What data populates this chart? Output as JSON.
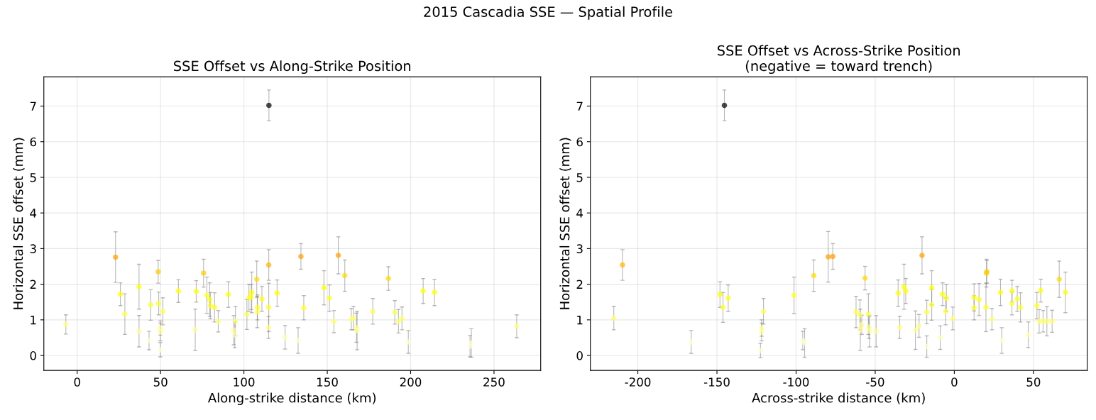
{
  "chart_data": [
    {
      "type": "scatter",
      "title": "SSE Offset vs Along-Strike Position",
      "xlabel": "Along-strike distance (km)",
      "ylabel": "Horizontal SSE offset (mm)",
      "annotations": [
        "2015 Cascadia SSE — Spatial Profile"
      ],
      "xlim": [
        -20,
        278
      ],
      "ylim": [
        -0.42,
        7.82
      ],
      "xticks": [
        0,
        50,
        100,
        150,
        200,
        250
      ],
      "yticks": [
        0,
        1,
        2,
        3,
        4,
        5,
        6,
        7
      ],
      "grid": true,
      "marker": "circle",
      "series": [
        {
          "x": [
            -6.8,
            23.0,
            25.9,
            28.6,
            37.1,
            37.1,
            43.1,
            44.1,
            48.6,
            48.9,
            49.9,
            49.9,
            49.9,
            51.4,
            60.7,
            70.8,
            71.4,
            75.8,
            77.8,
            79.5,
            79.9,
            82.4,
            84.6,
            90.6,
            93.9,
            94.5,
            94.9,
            101.8,
            103.0,
            104.4,
            104.7,
            107.7,
            108.0,
            108.1,
            110.8,
            114.9,
            114.9,
            114.8,
            119.9,
            124.7,
            132.5,
            134.2,
            135.9,
            148.0,
            151.3,
            154.0,
            156.6,
            160.5,
            164.4,
            165.7,
            167.5,
            167.9,
            177.3,
            186.7,
            190.5,
            192.7,
            194.8,
            198.6,
            207.5,
            214.3,
            236.4,
            235.6,
            263.6,
            115.0
          ],
          "values": [
            0.87,
            2.76,
            1.72,
            1.16,
            1.93,
            0.68,
            0.42,
            1.42,
            2.35,
            1.46,
            0.77,
            0.66,
            0.16,
            1.24,
            1.81,
            0.72,
            1.8,
            2.31,
            1.69,
            1.57,
            1.4,
            1.35,
            0.96,
            1.71,
            0.71,
            0.58,
            0.96,
            1.15,
            1.62,
            1.64,
            1.77,
            2.14,
            1.22,
            1.35,
            1.59,
            2.54,
            1.35,
            0.79,
            1.75,
            0.51,
            0.42,
            2.78,
            1.34,
            1.9,
            1.61,
            0.95,
            2.81,
            2.24,
            1.02,
            1.05,
            0.78,
            0.7,
            1.24,
            2.16,
            1.21,
            0.96,
            1.04,
            0.38,
            1.81,
            1.77,
            0.35,
            0.26,
            0.82,
            7.02
          ],
          "errors": [
            0.27,
            0.71,
            0.32,
            0.57,
            0.63,
            0.44,
            0.26,
            0.43,
            0.32,
            0.32,
            0.2,
            0.25,
            0.2,
            0.38,
            0.32,
            0.58,
            0.3,
            0.39,
            0.51,
            0.47,
            0.37,
            0.41,
            0.3,
            0.36,
            0.41,
            0.36,
            0.41,
            0.42,
            0.38,
            0.35,
            0.57,
            0.51,
            0.44,
            0.35,
            0.35,
            0.43,
            0.68,
            0.31,
            0.37,
            0.33,
            0.36,
            0.36,
            0.34,
            0.48,
            0.37,
            0.31,
            0.52,
            0.44,
            0.3,
            0.33,
            0.41,
            0.54,
            0.36,
            0.33,
            0.33,
            0.33,
            0.32,
            0.32,
            0.35,
            0.37,
            0.4,
            0.3,
            0.32,
            0.43
          ],
          "colors": [
            "#ffff85",
            "#ffa000",
            "#ffff03",
            "#ffff4c",
            "#ffff03",
            "#ffff9a",
            "#ffffd4",
            "#ffff29",
            "#ffcc00",
            "#ffff29",
            "#ffff9a",
            "#ffff9a",
            "#ffffd4",
            "#ffff4c",
            "#ffff03",
            "#ffff9a",
            "#ffff03",
            "#ffcc00",
            "#ffff1a",
            "#ffff1a",
            "#ffff29",
            "#ffff29",
            "#ffff70",
            "#ffff03",
            "#ffff9a",
            "#ffffb8",
            "#ffff70",
            "#ffff4c",
            "#ffff1a",
            "#ffff1a",
            "#ffff03",
            "#ffdb00",
            "#ffff4c",
            "#ffff29",
            "#ffff1a",
            "#ffb500",
            "#ffff29",
            "#ffff85",
            "#ffff03",
            "#ffffb8",
            "#ffffd4",
            "#ffa000",
            "#ffff29",
            "#ffff03",
            "#ffff1a",
            "#ffff70",
            "#ffa000",
            "#ffdb00",
            "#ffff70",
            "#ffff70",
            "#ffff85",
            "#ffff9a",
            "#ffff4c",
            "#ffdb00",
            "#ffff4c",
            "#ffff70",
            "#ffff70",
            "#ffffd4",
            "#ffff03",
            "#ffff03",
            "#ffffd4",
            "#ffffd4",
            "#ffff85",
            "#000000"
          ]
        }
      ]
    },
    {
      "type": "scatter",
      "title": "SSE Offset vs Across-Strike Position\n(negative = toward trench)",
      "xlabel": "Across-strike distance (km)",
      "ylabel": "Horizontal SSE offset (mm)",
      "xlim": [
        -230,
        84
      ],
      "ylim": [
        -0.42,
        7.82
      ],
      "xticks": [
        -200,
        -150,
        -100,
        -50,
        0,
        50
      ],
      "yticks": [
        0,
        1,
        2,
        3,
        4,
        5,
        6,
        7
      ],
      "grid": true,
      "marker": "circle",
      "series": [
        {
          "x": [
            -215.2,
            -209.7,
            -166.3,
            -148.1,
            -146.2,
            -142.9,
            -120.6,
            -121.8,
            -121.8,
            -122.5,
            -101.3,
            -95.8,
            -94.6,
            -88.8,
            -79.7,
            -76.8,
            -56.4,
            -62.1,
            -59.6,
            -58.5,
            -59.4,
            -54.3,
            -54.0,
            -53.6,
            -49.4,
            -35.5,
            -34.5,
            -31.8,
            -30.7,
            -24.6,
            -22.3,
            -20.4,
            -17.4,
            -17.4,
            -14.3,
            -14.3,
            -8.9,
            -7.4,
            -5.0,
            -5.5,
            -1.0,
            12.5,
            12.5,
            15.6,
            20.0,
            20.3,
            20.6,
            23.8,
            29.2,
            30.0,
            36.5,
            36.4,
            39.8,
            41.8,
            46.7,
            52.2,
            54.6,
            53.6,
            56.1,
            58.5,
            61.8,
            66.3,
            70.2,
            -145.3
          ],
          "values": [
            1.05,
            2.54,
            0.38,
            1.71,
            1.35,
            1.61,
            1.24,
            0.77,
            0.66,
            0.14,
            1.69,
            0.42,
            0.35,
            2.24,
            2.77,
            2.78,
            2.17,
            1.22,
            1.14,
            0.86,
            0.72,
            1.16,
            0.79,
            0.68,
            0.68,
            1.75,
            0.79,
            1.93,
            1.81,
            0.71,
            0.83,
            2.81,
            0.25,
            1.22,
            1.9,
            1.42,
            0.5,
            1.72,
            1.61,
            1.24,
            1.04,
            1.63,
            1.34,
            1.57,
            1.35,
            2.31,
            2.35,
            1.02,
            1.77,
            0.42,
            1.81,
            1.46,
            1.59,
            1.35,
            0.58,
            1.4,
            1.82,
            0.96,
            0.96,
            0.96,
            0.96,
            2.14,
            1.77,
            7.02
          ],
          "errors": [
            0.33,
            0.43,
            0.32,
            0.36,
            0.42,
            0.37,
            0.36,
            0.23,
            0.25,
            0.2,
            0.51,
            0.26,
            0.4,
            0.44,
            0.71,
            0.36,
            0.33,
            0.44,
            0.42,
            0.27,
            0.58,
            0.57,
            0.31,
            0.44,
            0.44,
            0.37,
            0.31,
            0.63,
            0.35,
            0.54,
            0.32,
            0.52,
            0.3,
            0.33,
            0.48,
            0.43,
            0.33,
            0.32,
            0.38,
            0.38,
            0.32,
            0.38,
            0.34,
            0.45,
            0.68,
            0.39,
            0.32,
            0.3,
            0.37,
            0.36,
            0.3,
            0.32,
            0.35,
            0.41,
            0.36,
            0.37,
            0.32,
            0.33,
            0.3,
            0.41,
            0.31,
            0.51,
            0.57,
            0.43
          ],
          "colors": [
            "#ffff70",
            "#ffb500",
            "#ffffd4",
            "#ffff03",
            "#ffff29",
            "#ffff1a",
            "#ffff4c",
            "#ffff9a",
            "#ffff9a",
            "#ffffd4",
            "#ffff1a",
            "#ffffd4",
            "#ffffd4",
            "#ffdb00",
            "#ffa000",
            "#ffa000",
            "#ffdb00",
            "#ffff4c",
            "#ffff4c",
            "#ffff85",
            "#ffff9a",
            "#ffff4c",
            "#ffff85",
            "#ffff9a",
            "#ffff9a",
            "#ffff03",
            "#ffff85",
            "#ffff03",
            "#ffff03",
            "#ffff9a",
            "#ffff85",
            "#ffa000",
            "#ffffd4",
            "#ffff4c",
            "#ffff03",
            "#ffff29",
            "#ffffb8",
            "#ffff03",
            "#ffff1a",
            "#ffff4c",
            "#ffff70",
            "#ffff1a",
            "#ffff29",
            "#ffff1a",
            "#ffff29",
            "#ffcc00",
            "#ffcc00",
            "#ffff70",
            "#ffff03",
            "#ffffd4",
            "#ffff03",
            "#ffff29",
            "#ffff1a",
            "#ffff29",
            "#ffffb8",
            "#ffff29",
            "#ffff03",
            "#ffff70",
            "#ffff70",
            "#ffff70",
            "#ffff70",
            "#ffdb00",
            "#ffff03",
            "#000000"
          ]
        }
      ]
    }
  ]
}
